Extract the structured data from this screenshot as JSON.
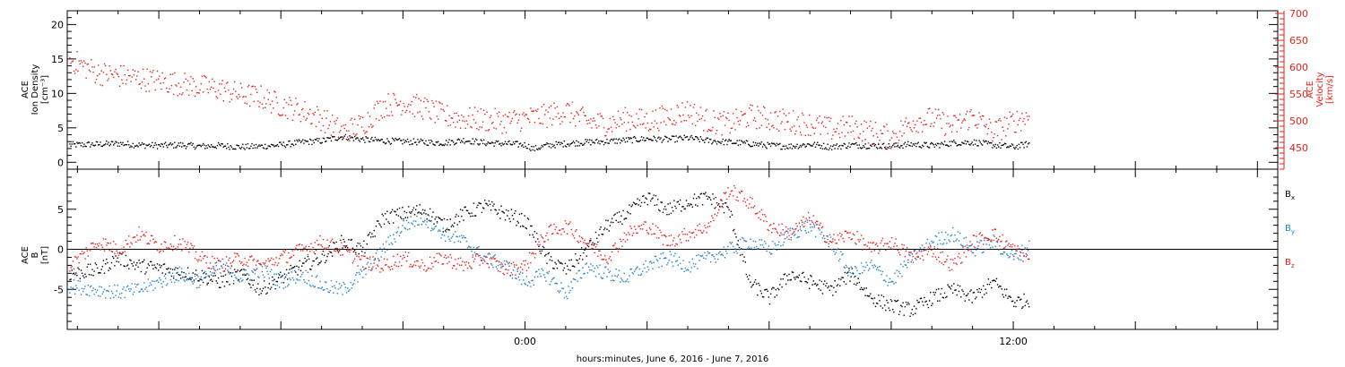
{
  "xlabel": "hours:minutes, June  6, 2016 - June  7, 2016",
  "x_tick_labels": [
    {
      "hour": 0,
      "label": "0:00"
    },
    {
      "hour": 12,
      "label": "12:00"
    }
  ],
  "colors": {
    "black": "#000000",
    "red": "#e8201a",
    "blue": "#1f7fd0"
  },
  "chart_data": [
    {
      "type": "scatter",
      "panel": "plasma",
      "x_range_hours": [
        -11.25,
        18.5
      ],
      "left_axis": {
        "label_lines": [
          "ACE",
          "Ion Density",
          "[cm⁻³]"
        ],
        "ylim": [
          -1,
          22
        ],
        "ticks": [
          0,
          5,
          10,
          15,
          20
        ]
      },
      "right_axis": {
        "label_lines": [
          "ACE",
          "Velocity",
          "[km/s]"
        ],
        "ylim": [
          410,
          705
        ],
        "ticks": [
          450,
          500,
          550,
          600,
          650,
          700
        ]
      },
      "series": [
        {
          "color_key": "black",
          "axis": "left",
          "points": [
            [
              -11.2,
              2.6
            ],
            [
              -10.5,
              2.7
            ],
            [
              -10,
              2.8
            ],
            [
              -9.5,
              2.6
            ],
            [
              -9,
              2.5
            ],
            [
              -8.5,
              2.6
            ],
            [
              -8,
              2.4
            ],
            [
              -7.5,
              2.5
            ],
            [
              -7,
              2.3
            ],
            [
              -6.5,
              2.4
            ],
            [
              -6,
              2.6
            ],
            [
              -5.5,
              3
            ],
            [
              -5,
              3.2
            ],
            [
              -4.5,
              3.8
            ],
            [
              -4,
              3.4
            ],
            [
              -3.5,
              3.2
            ],
            [
              -3,
              3.1
            ],
            [
              -2.5,
              3
            ],
            [
              -2,
              2.9
            ],
            [
              -1.5,
              3.3
            ],
            [
              -1,
              2.9
            ],
            [
              -0.5,
              2.8
            ],
            [
              0,
              2.6
            ],
            [
              0.2,
              2
            ],
            [
              0.5,
              2.5
            ],
            [
              1,
              2.8
            ],
            [
              1.5,
              3
            ],
            [
              2,
              3.1
            ],
            [
              2.5,
              3.3
            ],
            [
              3,
              3.5
            ],
            [
              3.5,
              3.4
            ],
            [
              4,
              3.6
            ],
            [
              4.5,
              3.2
            ],
            [
              5,
              3
            ],
            [
              5.5,
              2.8
            ],
            [
              6,
              2.5
            ],
            [
              6.5,
              2.4
            ],
            [
              7,
              2.7
            ],
            [
              7.5,
              2.3
            ],
            [
              8,
              2.6
            ],
            [
              8.5,
              2.5
            ],
            [
              9,
              2.4
            ],
            [
              9.5,
              2.7
            ],
            [
              10,
              2.5
            ],
            [
              10.5,
              2.9
            ],
            [
              11,
              3
            ],
            [
              11.5,
              2.6
            ],
            [
              12,
              2.3
            ],
            [
              12.4,
              2.8
            ]
          ]
        },
        {
          "color_key": "red",
          "axis": "right",
          "points": [
            [
              -11.2,
              615
            ],
            [
              -10.5,
              590
            ],
            [
              -10,
              585
            ],
            [
              -9.5,
              580
            ],
            [
              -9,
              575
            ],
            [
              -8.5,
              570
            ],
            [
              -8,
              565
            ],
            [
              -7.5,
              560
            ],
            [
              -7,
              550
            ],
            [
              -6.5,
              545
            ],
            [
              -6,
              530
            ],
            [
              -5.5,
              520
            ],
            [
              -5,
              505
            ],
            [
              -4.5,
              480
            ],
            [
              -4,
              495
            ],
            [
              -3.5,
              530
            ],
            [
              -3,
              535
            ],
            [
              -2.5,
              525
            ],
            [
              -2,
              510
            ],
            [
              -1.5,
              505
            ],
            [
              -1,
              503
            ],
            [
              -0.5,
              500
            ],
            [
              0,
              505
            ],
            [
              0.5,
              510
            ],
            [
              1,
              520
            ],
            [
              1.5,
              500
            ],
            [
              2,
              495
            ],
            [
              2.5,
              505
            ],
            [
              3,
              500
            ],
            [
              3.5,
              510
            ],
            [
              4,
              520
            ],
            [
              4.5,
              500
            ],
            [
              5,
              495
            ],
            [
              5.5,
              510
            ],
            [
              6,
              505
            ],
            [
              6.5,
              500
            ],
            [
              7,
              495
            ],
            [
              7.5,
              485
            ],
            [
              8,
              490
            ],
            [
              8.5,
              480
            ],
            [
              9,
              470
            ],
            [
              9.5,
              500
            ],
            [
              10,
              505
            ],
            [
              10.5,
              490
            ],
            [
              11,
              510
            ],
            [
              11.5,
              480
            ],
            [
              12,
              500
            ],
            [
              12.4,
              510
            ]
          ]
        }
      ]
    },
    {
      "type": "scatter",
      "panel": "magnetic",
      "x_range_hours": [
        -11.25,
        18.5
      ],
      "left_axis": {
        "label_lines": [
          "ACE",
          "B",
          "[nT]"
        ],
        "ylim": [
          -10,
          10
        ],
        "ticks": [
          -5,
          0,
          5
        ]
      },
      "legend": [
        "Bx",
        "By",
        "Bz"
      ],
      "legend_position": "right",
      "series": [
        {
          "name": "Bx",
          "color_key": "black",
          "points": [
            [
              -11.2,
              -3
            ],
            [
              -10.5,
              -2.5
            ],
            [
              -10,
              -1
            ],
            [
              -9.5,
              -2
            ],
            [
              -9,
              -2.3
            ],
            [
              -8.5,
              -2.8
            ],
            [
              -8,
              -3.2
            ],
            [
              -7.5,
              -4
            ],
            [
              -7,
              -3
            ],
            [
              -6.5,
              -5
            ],
            [
              -6,
              -3.5
            ],
            [
              -5.5,
              -2
            ],
            [
              -5,
              -1
            ],
            [
              -4.5,
              1
            ],
            [
              -4,
              0
            ],
            [
              -3.5,
              4
            ],
            [
              -3,
              4.5
            ],
            [
              -2.5,
              5
            ],
            [
              -2,
              3
            ],
            [
              -1.5,
              4.5
            ],
            [
              -1,
              5.5
            ],
            [
              -0.5,
              4.5
            ],
            [
              0,
              3.5
            ],
            [
              0.2,
              2
            ],
            [
              0.5,
              -1
            ],
            [
              1,
              -2.5
            ],
            [
              1.5,
              0
            ],
            [
              2,
              3
            ],
            [
              2.5,
              4.5
            ],
            [
              3,
              6.5
            ],
            [
              3.5,
              5
            ],
            [
              4,
              6
            ],
            [
              4.5,
              6.5
            ],
            [
              5,
              5
            ],
            [
              5.5,
              -4
            ],
            [
              6,
              -6
            ],
            [
              6.5,
              -3
            ],
            [
              7,
              -4
            ],
            [
              7.5,
              -5
            ],
            [
              8,
              -3
            ],
            [
              8.5,
              -6
            ],
            [
              9,
              -7
            ],
            [
              9.5,
              -7.5
            ],
            [
              10,
              -6
            ],
            [
              10.5,
              -5
            ],
            [
              11,
              -6
            ],
            [
              11.5,
              -4
            ],
            [
              12,
              -6.5
            ],
            [
              12.4,
              -6.3
            ]
          ]
        },
        {
          "name": "By",
          "color_key": "blue",
          "points": [
            [
              -11.2,
              -4.5
            ],
            [
              -10.5,
              -5
            ],
            [
              -10,
              -5.3
            ],
            [
              -9.5,
              -5
            ],
            [
              -9,
              -4
            ],
            [
              -8.5,
              -3
            ],
            [
              -8,
              -4
            ],
            [
              -7.5,
              -2
            ],
            [
              -7,
              -3.5
            ],
            [
              -6.5,
              -2.5
            ],
            [
              -6,
              -4
            ],
            [
              -5.5,
              -3
            ],
            [
              -5,
              -4.5
            ],
            [
              -4.5,
              -5
            ],
            [
              -4,
              -3
            ],
            [
              -3.5,
              0
            ],
            [
              -3,
              3
            ],
            [
              -2.5,
              4
            ],
            [
              -2,
              2
            ],
            [
              -1.5,
              1
            ],
            [
              -1,
              -1
            ],
            [
              -0.5,
              -2
            ],
            [
              0,
              -4
            ],
            [
              0.5,
              -3
            ],
            [
              1,
              -5.5
            ],
            [
              1.5,
              -2
            ],
            [
              2,
              -3
            ],
            [
              2.5,
              -3.5
            ],
            [
              3,
              -2
            ],
            [
              3.5,
              -1
            ],
            [
              4,
              -2
            ],
            [
              4.5,
              -1
            ],
            [
              5,
              0
            ],
            [
              5.5,
              1
            ],
            [
              6,
              0
            ],
            [
              6.5,
              2
            ],
            [
              7,
              3
            ],
            [
              7.5,
              1
            ],
            [
              8,
              -3
            ],
            [
              8.5,
              -2
            ],
            [
              9,
              -4
            ],
            [
              9.5,
              -1
            ],
            [
              10,
              1
            ],
            [
              10.5,
              2
            ],
            [
              11,
              0
            ],
            [
              11.5,
              1
            ],
            [
              12,
              -1
            ],
            [
              12.4,
              0.5
            ]
          ]
        },
        {
          "name": "Bz",
          "color_key": "red",
          "points": [
            [
              -11.2,
              -2
            ],
            [
              -10.5,
              1
            ],
            [
              -10,
              0
            ],
            [
              -9.5,
              2
            ],
            [
              -9,
              0.5
            ],
            [
              -8.5,
              1
            ],
            [
              -8,
              -1
            ],
            [
              -7.5,
              -2
            ],
            [
              -7,
              -1
            ],
            [
              -6.5,
              -2
            ],
            [
              -6,
              -1
            ],
            [
              -5.5,
              0
            ],
            [
              -5,
              1
            ],
            [
              -4.5,
              0
            ],
            [
              -4,
              -1.5
            ],
            [
              -3.5,
              -2
            ],
            [
              -3,
              -1
            ],
            [
              -2.5,
              -2
            ],
            [
              -2,
              -1
            ],
            [
              -1.5,
              -2
            ],
            [
              -1,
              -1
            ],
            [
              -0.5,
              -2.5
            ],
            [
              0,
              -2
            ],
            [
              0.5,
              2
            ],
            [
              1,
              3
            ],
            [
              1.5,
              1
            ],
            [
              2,
              -1
            ],
            [
              2.5,
              2
            ],
            [
              3,
              3
            ],
            [
              3.5,
              1
            ],
            [
              4,
              2
            ],
            [
              4.5,
              3
            ],
            [
              5,
              7.5
            ],
            [
              5.5,
              6
            ],
            [
              6,
              3
            ],
            [
              6.5,
              2
            ],
            [
              7,
              4
            ],
            [
              7.5,
              1
            ],
            [
              8,
              2
            ],
            [
              8.5,
              0
            ],
            [
              9,
              1
            ],
            [
              9.5,
              -1
            ],
            [
              10,
              0
            ],
            [
              10.5,
              -2
            ],
            [
              11,
              1
            ],
            [
              11.5,
              2
            ],
            [
              12,
              0
            ],
            [
              12.4,
              -1
            ]
          ]
        }
      ]
    }
  ]
}
